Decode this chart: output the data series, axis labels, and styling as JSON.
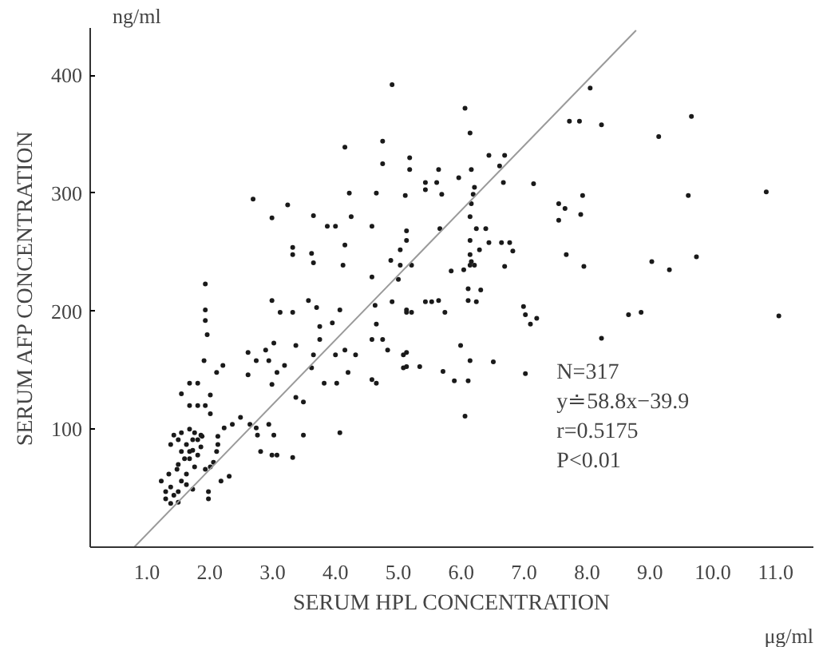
{
  "chart_data": {
    "type": "scatter",
    "xlabel": "SERUM HPL CONCENTRATION",
    "ylabel": "SERUM AFP CONCENTRATION",
    "annotations": [
      "ng/ml",
      "μg/ml",
      "N=317",
      "y≐58.8x−39.9",
      "r=0.5175",
      "P<0.01"
    ],
    "xlim": [
      0.1,
      11.6
    ],
    "ylim": [
      0,
      440
    ],
    "xticks": [
      {
        "value": 1,
        "label": "1.0"
      },
      {
        "value": 2,
        "label": "2.0"
      },
      {
        "value": 3,
        "label": "3.0"
      },
      {
        "value": 4,
        "label": "4.0"
      },
      {
        "value": 5,
        "label": "5.0"
      },
      {
        "value": 6,
        "label": "6.0"
      },
      {
        "value": 7,
        "label": "7.0"
      },
      {
        "value": 8,
        "label": "8.0"
      },
      {
        "value": 9,
        "label": "9.0"
      },
      {
        "value": 10,
        "label": "10.0"
      },
      {
        "value": 11,
        "label": "11.0"
      }
    ],
    "yticks": [
      100,
      200,
      300,
      400
    ],
    "grid": false,
    "series": [
      {
        "marker": "circle",
        "color": "#1a1a1a",
        "x": [
          1.93,
          2.69,
          2.99,
          3.24,
          3.32,
          3.32,
          3.62,
          3.65,
          3.65,
          3.87,
          4.0,
          4.15,
          4.15,
          4.12,
          4.22,
          4.25,
          4.58,
          4.58,
          4.65,
          4.75,
          4.75,
          4.9,
          4.88,
          5.11,
          5.13,
          5.03,
          5.03,
          5.18,
          5.18,
          5.0,
          5.13,
          1.93,
          1.93,
          1.96,
          1.91,
          1.68,
          1.81,
          1.55,
          1.68,
          1.81,
          1.93,
          2.01,
          2.01,
          2.11,
          2.21,
          2.61,
          2.74,
          2.61,
          2.99,
          2.89,
          2.94,
          2.99,
          3.02,
          3.07,
          3.12,
          3.32,
          3.19,
          3.37,
          3.57,
          3.7,
          3.75,
          3.75,
          3.65,
          3.62,
          3.82,
          3.95,
          4.07,
          4.0,
          4.02,
          4.15,
          4.2,
          4.32,
          4.58,
          4.58,
          4.65,
          4.65,
          4.75,
          4.83,
          4.9,
          4.63,
          5.08,
          5.13,
          5.08,
          3.37,
          3.49,
          2.36,
          2.49,
          2.23,
          2.13,
          2.13,
          2.11,
          2.06,
          2.01,
          2.18,
          2.31,
          1.98,
          1.98,
          2.64,
          2.74,
          2.76,
          2.94,
          3.02,
          2.81,
          2.99,
          3.07,
          3.32,
          3.49,
          4.07,
          1.23,
          1.3,
          1.3,
          1.38,
          1.35,
          1.48,
          1.55,
          1.43,
          1.5,
          1.38,
          1.5,
          1.63,
          1.73,
          1.63,
          1.76,
          1.68,
          1.73,
          1.81,
          1.5,
          1.43,
          1.55,
          1.68,
          1.76,
          1.5,
          1.63,
          1.73,
          1.86,
          1.55,
          1.68,
          1.38,
          1.6,
          1.81,
          1.88,
          1.86,
          1.93,
          8.05,
          6.06,
          6.14,
          7.72,
          7.88,
          8.23,
          9.14,
          9.66,
          6.44,
          6.69,
          6.61,
          5.64,
          6.16,
          5.43,
          5.43,
          5.61,
          5.69,
          5.96,
          6.67,
          7.15,
          6.21,
          6.19,
          6.16,
          6.14,
          6.24,
          6.39,
          5.66,
          6.14,
          6.44,
          6.64,
          6.77,
          6.29,
          6.82,
          6.14,
          6.16,
          6.14,
          6.21,
          6.04,
          5.84,
          6.69,
          5.21,
          7.93,
          7.55,
          7.65,
          7.9,
          7.55,
          9.61,
          10.85,
          7.67,
          7.95,
          9.03,
          9.31,
          9.74,
          6.11,
          6.31,
          6.11,
          6.24,
          5.64,
          5.43,
          5.74,
          6.99,
          7.02,
          7.2,
          8.66,
          8.86,
          11.05,
          5.13,
          5.21,
          5.53,
          7.1,
          8.23,
          5.99,
          5.13,
          6.14,
          6.51,
          5.13,
          5.34,
          5.71,
          5.89,
          6.11,
          7.02,
          6.06
        ],
        "values": [
          223,
          295,
          279,
          290,
          254,
          248,
          249,
          281,
          241,
          272,
          272,
          339,
          256,
          239,
          300,
          280,
          272,
          229,
          300,
          344,
          325,
          392,
          243,
          298,
          268,
          252,
          239,
          330,
          320,
          227,
          260,
          201,
          192,
          180,
          158,
          139,
          139,
          130,
          120,
          120,
          120,
          129,
          113,
          148,
          154,
          165,
          158,
          146,
          209,
          167,
          158,
          138,
          173,
          148,
          199,
          199,
          154,
          171,
          209,
          203,
          187,
          176,
          163,
          152,
          139,
          190,
          201,
          163,
          139,
          167,
          148,
          163,
          176,
          142,
          139,
          189,
          176,
          167,
          208,
          205,
          163,
          199,
          152,
          127,
          123,
          104,
          110,
          101,
          94,
          87,
          81,
          72,
          68,
          56,
          60,
          47,
          41,
          104,
          101,
          95,
          104,
          95,
          81,
          78,
          78,
          76,
          95,
          97,
          56,
          47,
          41,
          51,
          62,
          66,
          56,
          44,
          47,
          37,
          38,
          53,
          49,
          62,
          68,
          75,
          82,
          78,
          70,
          95,
          97,
          100,
          97,
          91,
          87,
          91,
          95,
          81,
          81,
          87,
          75,
          91,
          94,
          85,
          66,
          389,
          372,
          351,
          361,
          361,
          358,
          348,
          365,
          332,
          332,
          323,
          320,
          320,
          309,
          303,
          309,
          299,
          313,
          309,
          308,
          305,
          299,
          291,
          280,
          270,
          270,
          270,
          260,
          258,
          258,
          258,
          252,
          251,
          248,
          242,
          239,
          239,
          235,
          234,
          238,
          239,
          298,
          291,
          287,
          282,
          277,
          298,
          301,
          248,
          238,
          242,
          235,
          246,
          219,
          218,
          209,
          208,
          209,
          208,
          199,
          204,
          197,
          194,
          197,
          199,
          196,
          201,
          199,
          208,
          189,
          177,
          171,
          165,
          158,
          157,
          153,
          153,
          149,
          141,
          141,
          147,
          111
        ]
      },
      {
        "type": "line",
        "marker": "none",
        "color": "#9a9a9a",
        "x": [
          0.8,
          8.78
        ],
        "values": [
          0,
          438
        ]
      }
    ]
  }
}
